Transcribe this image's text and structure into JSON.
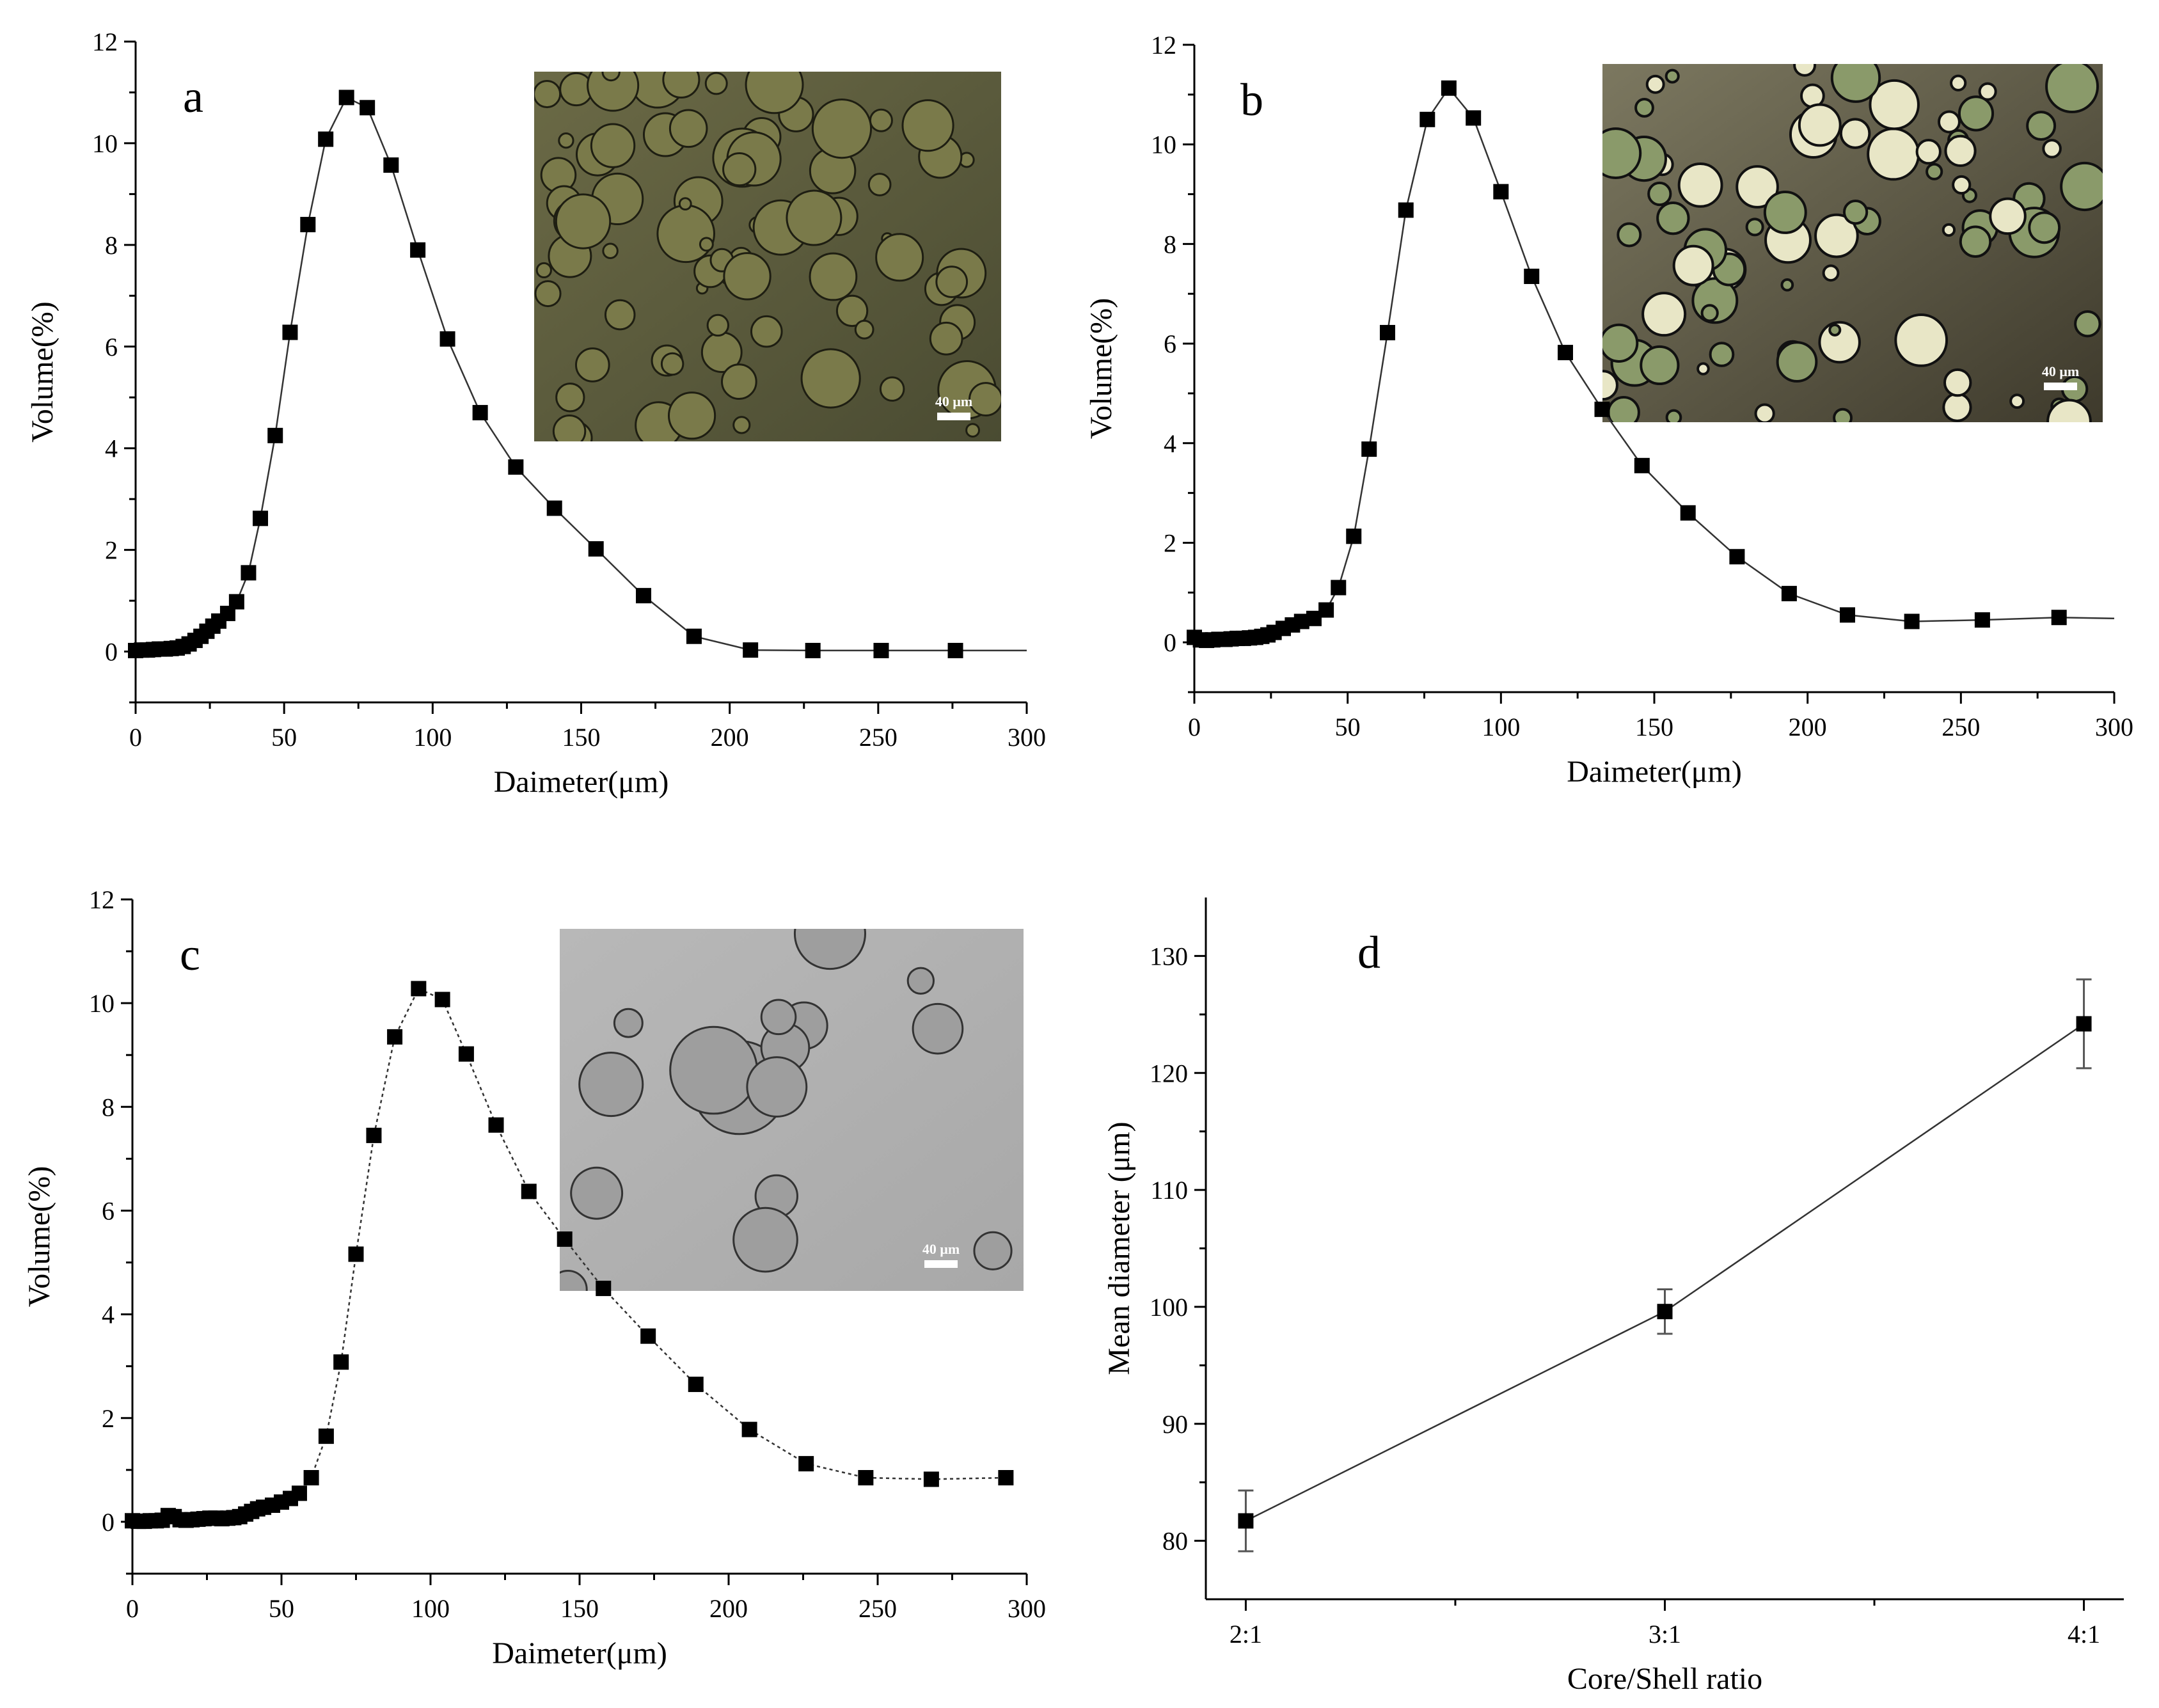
{
  "chart_data": [
    {
      "type": "scatter",
      "panel_label": "a",
      "xlabel": "Daimeter(μm)",
      "ylabel": "Volume(%)",
      "xlim": [
        0,
        300
      ],
      "ylim": [
        -1,
        12
      ],
      "x_ticks": [
        "0",
        "50",
        "100",
        "150",
        "200",
        "250",
        "300"
      ],
      "y_ticks": [
        "0",
        "2",
        "4",
        "6",
        "8",
        "10",
        "12"
      ],
      "line_style": "solid",
      "inset": {
        "scale_label": "40 μm",
        "style": "dark"
      },
      "x": [
        0,
        2,
        4,
        6,
        8,
        10,
        12,
        14,
        16,
        18,
        20,
        22,
        24,
        26,
        28,
        31,
        34,
        38,
        42,
        47,
        52,
        58,
        64,
        71,
        78,
        86,
        95,
        105,
        116,
        128,
        141,
        155,
        171,
        188,
        207,
        228,
        251,
        276,
        300
      ],
      "y": [
        0.02,
        0.03,
        0.03,
        0.04,
        0.05,
        0.05,
        0.06,
        0.07,
        0.1,
        0.15,
        0.22,
        0.3,
        0.4,
        0.5,
        0.6,
        0.75,
        0.98,
        1.55,
        2.62,
        4.25,
        6.28,
        8.4,
        10.08,
        10.9,
        10.7,
        9.57,
        7.9,
        6.15,
        4.7,
        3.63,
        2.82,
        2.02,
        1.1,
        0.3,
        0.03,
        0.02,
        0.02,
        0.02,
        0.02
      ],
      "marker_count": 38
    },
    {
      "type": "scatter",
      "panel_label": "b",
      "xlabel": "Daimeter(μm)",
      "ylabel": "Volume(%)",
      "xlim": [
        0,
        300
      ],
      "ylim": [
        -1,
        12
      ],
      "x_ticks": [
        "0",
        "50",
        "100",
        "150",
        "200",
        "250",
        "300"
      ],
      "y_ticks": [
        "0",
        "2",
        "4",
        "6",
        "8",
        "10",
        "12"
      ],
      "line_style": "solid",
      "inset": {
        "scale_label": "40 μm",
        "style": "bright"
      },
      "x": [
        0,
        2,
        4,
        6,
        8,
        10,
        12,
        14,
        16,
        18,
        20,
        22,
        24,
        26,
        29,
        32,
        35,
        39,
        43,
        47,
        52,
        57,
        63,
        69,
        76,
        83,
        91,
        100,
        110,
        121,
        133,
        146,
        161,
        177,
        194,
        213,
        234,
        257,
        282,
        300
      ],
      "y": [
        0.1,
        0.05,
        0.04,
        0.05,
        0.06,
        0.06,
        0.07,
        0.08,
        0.08,
        0.09,
        0.1,
        0.12,
        0.15,
        0.2,
        0.28,
        0.35,
        0.42,
        0.48,
        0.65,
        1.1,
        2.13,
        3.88,
        6.22,
        8.68,
        10.5,
        11.13,
        10.53,
        9.05,
        7.35,
        5.82,
        4.68,
        3.55,
        2.6,
        1.72,
        0.98,
        0.55,
        0.42,
        0.45,
        0.5,
        0.48
      ],
      "marker_count": 39
    },
    {
      "type": "scatter",
      "panel_label": "c",
      "xlabel": "Daimeter(μm)",
      "ylabel": "Volume(%)",
      "xlim": [
        0,
        300
      ],
      "ylim": [
        -1,
        12
      ],
      "x_ticks": [
        "0",
        "50",
        "100",
        "150",
        "200",
        "250",
        "300"
      ],
      "y_ticks": [
        "0",
        "2",
        "4",
        "6",
        "8",
        "10",
        "12"
      ],
      "line_style": "dotted",
      "inset": {
        "scale_label": "40 μm",
        "style": "gray"
      },
      "x": [
        0,
        2,
        4,
        6,
        8,
        10,
        12,
        14,
        16,
        18,
        20,
        22,
        24,
        26,
        28,
        30,
        32,
        34,
        36,
        38,
        40,
        42,
        44,
        47,
        50,
        53,
        56,
        60,
        65,
        70,
        75,
        81,
        88,
        96,
        104,
        112,
        122,
        133,
        145,
        158,
        173,
        189,
        207,
        226,
        246,
        268,
        293
      ],
      "y": [
        0.02,
        0.01,
        0.01,
        0.02,
        0.02,
        0.03,
        0.12,
        0.1,
        0.04,
        0.03,
        0.04,
        0.05,
        0.06,
        0.07,
        0.07,
        0.06,
        0.07,
        0.08,
        0.1,
        0.15,
        0.2,
        0.25,
        0.28,
        0.32,
        0.38,
        0.45,
        0.55,
        0.85,
        1.65,
        3.08,
        5.16,
        7.45,
        9.35,
        10.28,
        10.07,
        9.02,
        7.65,
        6.37,
        5.45,
        4.5,
        3.58,
        2.65,
        1.78,
        1.12,
        0.85,
        0.82,
        0.85
      ],
      "marker_count": 47
    },
    {
      "type": "scatter",
      "panel_label": "d",
      "xlabel": "Core/Shell ratio",
      "ylabel": "Mean diameter (μm)",
      "categories": [
        "2:1",
        "3:1",
        "4:1"
      ],
      "ylim": [
        75,
        135
      ],
      "y_ticks": [
        "80",
        "90",
        "100",
        "110",
        "120",
        "130"
      ],
      "values": [
        81.7,
        99.6,
        124.2
      ],
      "error": [
        2.6,
        1.9,
        3.8
      ],
      "line_style": "solid"
    }
  ]
}
